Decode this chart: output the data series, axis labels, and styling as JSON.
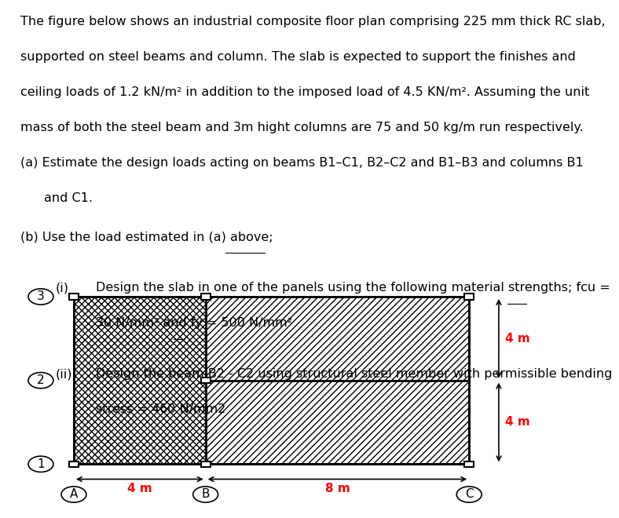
{
  "text_lines": [
    "The figure below shows an industrial composite floor plan comprising 225 mm thick RC slab,",
    "supported on steel beams and column. The slab is expected to support the finishes and",
    "ceiling loads of 1.2 kN/m² in addition to the imposed load of 4.5 KN/m². Assuming the unit",
    "mass of both the steel beam and 3m hight columns are 75 and 50 kg/m run respectively."
  ],
  "part_a": "(a) Estimate the design loads acting on beams B1–C1, B2–C2 and B1–B3 and columns B1",
  "part_a2": "and C1.",
  "part_b": "(b) Use the load estimated in (a) above;",
  "part_i_label": "(i)",
  "part_i_text1": "Design the slab in one of the panels using the following material strengths; fcu =",
  "part_i_text2": "30 N/mm² and fy = 500 N/mm²",
  "part_ii_label": "(ii)",
  "part_ii_text1": "Design the beam B2 - C2 using structural steel member with permissible bending",
  "part_ii_text2": "stress = 460 N/mm2",
  "dim_4m_horiz": "4 m",
  "dim_8m_horiz": "8 m",
  "dim_4m_vert_top": "4 m",
  "dim_4m_vert_bot": "4 m",
  "col_A": "A",
  "col_B": "B",
  "col_C": "C",
  "row_1": "1",
  "row_2": "2",
  "row_3": "3",
  "red_color": "#FF0000",
  "black_color": "#000000",
  "bg_color": "#FFFFFF",
  "font_size_body": 11.5,
  "font_family": "DejaVu Sans"
}
